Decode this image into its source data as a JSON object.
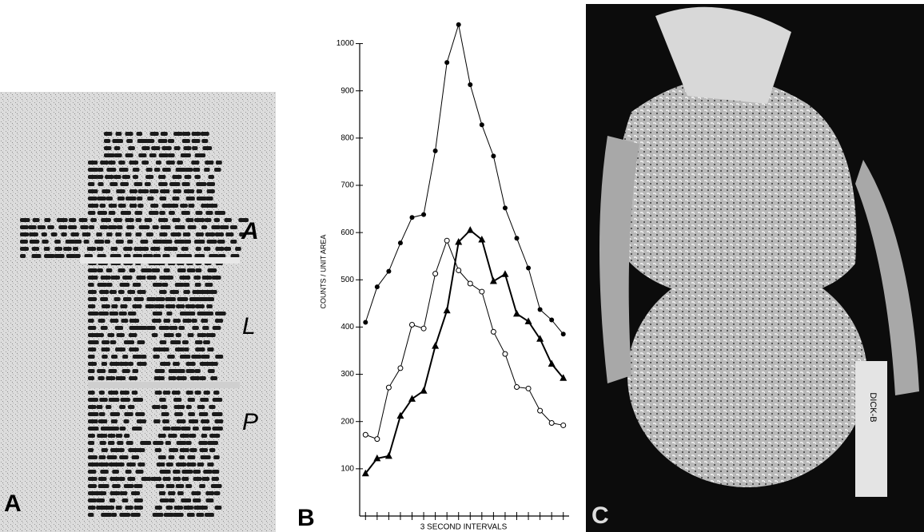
{
  "panels": [
    "A",
    "B",
    "C"
  ],
  "panel_a": {
    "regions": [
      "A",
      "L",
      "P"
    ]
  },
  "panel_c": {
    "ruler_text": "DICK-B"
  },
  "chart_data": {
    "type": "line",
    "y_label": "COUNTS / UNIT AREA",
    "x_label": "3 SECOND INTERVALS",
    "categories": [
      null,
      null,
      null,
      null,
      null,
      null,
      null,
      null,
      null,
      null,
      null,
      null,
      null,
      null,
      null,
      null,
      null,
      null
    ],
    "ylim": [
      0,
      1050
    ],
    "yticks": [
      100,
      200,
      300,
      400,
      500,
      600,
      700,
      800,
      900,
      1000
    ],
    "series": [
      {
        "marker": "filled-circle",
        "color": "#000000",
        "values": [
          410,
          485,
          518,
          578,
          632,
          638,
          773,
          960,
          1040,
          913,
          828,
          762,
          652,
          588,
          525,
          437,
          415,
          385
        ]
      },
      {
        "marker": "open-circle",
        "color": "#000000",
        "values": [
          172,
          163,
          272,
          313,
          405,
          397,
          513,
          583,
          520,
          492,
          475,
          390,
          343,
          273,
          270,
          223,
          197,
          192
        ]
      },
      {
        "marker": "filled-triangle",
        "color": "#000000",
        "values": [
          90,
          122,
          127,
          212,
          248,
          265,
          360,
          435,
          580,
          605,
          585,
          497,
          512,
          428,
          412,
          375,
          322,
          292
        ]
      }
    ]
  }
}
